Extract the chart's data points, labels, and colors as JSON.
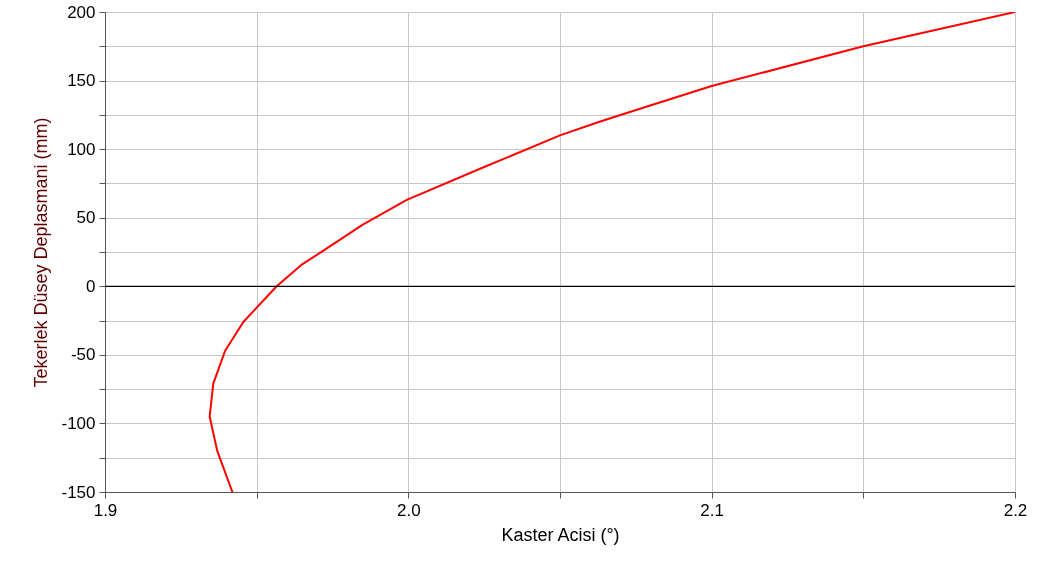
{
  "chart_data": {
    "type": "line",
    "xlabel": "Kaster Acisi (°)",
    "ylabel": "Tekerlek Düsey Deplasmani (mm)",
    "x": [
      1.942,
      1.937,
      1.9345,
      1.9357,
      1.9396,
      1.9456,
      1.9566,
      1.965,
      1.972,
      1.985,
      1.9995,
      2.025,
      2.05,
      2.063,
      2.08,
      2.1,
      2.15,
      2.2
    ],
    "series": [
      {
        "color": "#ff0000",
        "values": [
          -150,
          -120,
          -95,
          -71,
          -47,
          -26,
          0,
          16,
          26,
          45,
          63,
          87,
          110,
          120,
          132,
          146,
          175,
          200
        ]
      }
    ],
    "xlim": [
      1.9,
      2.2
    ],
    "xticks": [
      1.9,
      {
        "value": 1.95,
        "label": null
      },
      {
        "value": 2.0,
        "label": "2.0"
      },
      {
        "value": 2.05,
        "label": null
      },
      2.1,
      {
        "value": 2.15,
        "label": null
      },
      2.2
    ],
    "ylim": [
      -150,
      200
    ],
    "yticks": [
      -150,
      {
        "value": -125,
        "label": null
      },
      -100,
      {
        "value": -75,
        "label": null
      },
      -50,
      {
        "value": -25,
        "label": null
      },
      0,
      {
        "value": 25,
        "label": null
      },
      50,
      {
        "value": 75,
        "label": null
      },
      100,
      {
        "value": 125,
        "label": null
      },
      150,
      {
        "value": 175,
        "label": null
      },
      200
    ],
    "grid": true,
    "ref_lines": [
      {
        "axis": "y",
        "value": 0,
        "color": "#000000"
      }
    ],
    "marker": "none",
    "line_style": "solid"
  }
}
